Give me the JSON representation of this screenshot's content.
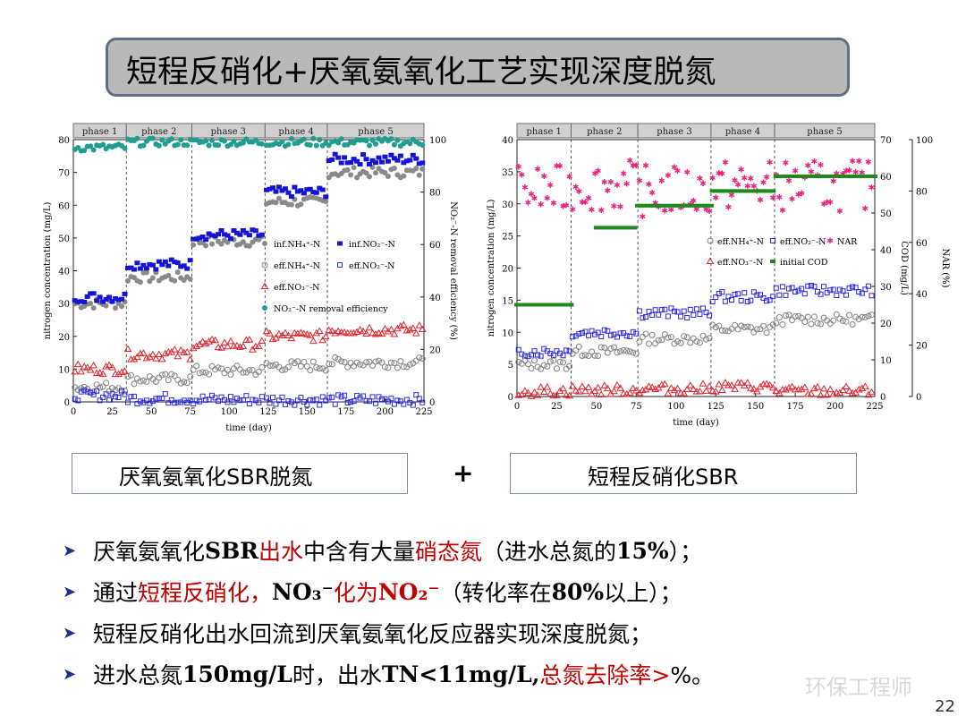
{
  "slide": {
    "title": "短程反硝化+厌氧氨氧化工艺实现深度脱氮",
    "page_number": "22",
    "watermark": "环保工程师",
    "plus": "+",
    "left_label": "厌氧氨氧化SBR脱氮",
    "right_label": "短程反硝化SBR"
  },
  "bullets": [
    {
      "parts": [
        {
          "t": "厌氧氨氧化",
          "c": ""
        },
        {
          "t": "SBR",
          "c": "bold"
        },
        {
          "t": "出水",
          "c": "red"
        },
        {
          "t": "中含有大量",
          "c": ""
        },
        {
          "t": "硝态氮",
          "c": "red"
        },
        {
          "t": "（进水总氮的",
          "c": ""
        },
        {
          "t": "15%",
          "c": "bold"
        },
        {
          "t": "）；",
          "c": ""
        }
      ]
    },
    {
      "parts": [
        {
          "t": "通过",
          "c": ""
        },
        {
          "t": "短程反硝化，",
          "c": "red"
        },
        {
          "t": "   NO₃⁻ ",
          "c": "bold"
        },
        {
          "t": "化为",
          "c": "red"
        },
        {
          "t": "NO₂⁻",
          "c": "bold red"
        },
        {
          "t": "（转化率在",
          "c": ""
        },
        {
          "t": "80%",
          "c": "bold"
        },
        {
          "t": "以上）；",
          "c": ""
        }
      ]
    },
    {
      "parts": [
        {
          "t": "短程反硝化出水回流到厌氧氨氧化反应器实现深度脱氮；",
          "c": ""
        }
      ]
    },
    {
      "parts": [
        {
          "t": "进水总氮",
          "c": ""
        },
        {
          "t": "150mg/L",
          "c": "bold"
        },
        {
          "t": "时，出水",
          "c": ""
        },
        {
          "t": "TN<11mg/L,",
          "c": "bold"
        },
        {
          "t": " ",
          "c": ""
        },
        {
          "t": "总氮去除率>",
          "c": "red"
        },
        {
          "t": "%。",
          "c": ""
        }
      ]
    }
  ],
  "chart_data": [
    {
      "type": "scatter",
      "xlabel": "time (day)",
      "ylabel": "nitrogen concentration (mg/L)",
      "y2label": "NO₂⁻-N removal efficiency (%)",
      "xlim": [
        0,
        225
      ],
      "ylim": [
        0,
        80
      ],
      "y2lim": [
        0,
        100
      ],
      "xticks": [
        0,
        25,
        50,
        75,
        100,
        125,
        150,
        175,
        200,
        225
      ],
      "yticks": [
        0,
        10,
        20,
        30,
        40,
        50,
        60,
        70,
        80
      ],
      "y2ticks": [
        0,
        20,
        40,
        60,
        80,
        100
      ],
      "phases": [
        {
          "label": "phase 1",
          "start": 0,
          "end": 34
        },
        {
          "label": "phase 2",
          "start": 34,
          "end": 76
        },
        {
          "label": "phase 3",
          "start": 76,
          "end": 123
        },
        {
          "label": "phase 4",
          "start": 123,
          "end": 163
        },
        {
          "label": "phase 5",
          "start": 163,
          "end": 225
        }
      ],
      "legend": {
        "position": "center-right",
        "entries": [
          "inf.NH₄⁺-N",
          "inf.NO₂⁻-N",
          "eff.NH₄⁺-N",
          "eff.NO₂⁻-N",
          "eff.NO₃⁻-N",
          "NO₂⁻-N removal efficiency"
        ]
      },
      "series": [
        {
          "name": "inf.NH₄⁺-N",
          "marker": "filled-circle",
          "color": "#8a8a8a",
          "axis": "left",
          "segments": [
            [
              0,
              34,
              30
            ],
            [
              34,
              76,
              38
            ],
            [
              76,
              123,
              49
            ],
            [
              123,
              163,
              61
            ],
            [
              163,
              225,
              70
            ]
          ]
        },
        {
          "name": "inf.NO₂⁻-N",
          "marker": "filled-square",
          "color": "#1414d8",
          "axis": "left",
          "segments": [
            [
              0,
              34,
              32
            ],
            [
              34,
              76,
              42
            ],
            [
              76,
              123,
              51
            ],
            [
              123,
              163,
              64
            ],
            [
              163,
              225,
              74
            ]
          ]
        },
        {
          "name": "eff.NH₄⁺-N",
          "marker": "open-circle",
          "color": "#808080",
          "axis": "left",
          "segments": [
            [
              0,
              34,
              4.5
            ],
            [
              34,
              76,
              7
            ],
            [
              76,
              123,
              9.5
            ],
            [
              123,
              163,
              11
            ],
            [
              163,
              225,
              12
            ]
          ]
        },
        {
          "name": "eff.NO₂⁻-N",
          "marker": "open-square",
          "color": "#2a2ae0",
          "axis": "left",
          "segments": [
            [
              0,
              34,
              2
            ],
            [
              34,
              76,
              1
            ],
            [
              76,
              123,
              0.7
            ],
            [
              123,
              163,
              0.6
            ],
            [
              163,
              225,
              0.6
            ]
          ]
        },
        {
          "name": "eff.NO₃⁻-N",
          "marker": "open-triangle",
          "color": "#e0232c",
          "axis": "left",
          "segments": [
            [
              0,
              34,
              10
            ],
            [
              34,
              76,
              14.5
            ],
            [
              76,
              123,
              17.5
            ],
            [
              123,
              163,
              20
            ],
            [
              163,
              225,
              22
            ]
          ]
        },
        {
          "name": "NO₂⁻-N removal efficiency",
          "marker": "filled-circle",
          "color": "#1e9e8c",
          "axis": "right",
          "segments": [
            [
              0,
              34,
              97
            ],
            [
              34,
              76,
              99
            ],
            [
              76,
              123,
              99
            ],
            [
              123,
              163,
              99
            ],
            [
              163,
              225,
              99
            ]
          ]
        }
      ]
    },
    {
      "type": "scatter",
      "xlabel": "time (day)",
      "ylabel": "nitrogen concentration (mg/L)",
      "y2label": "COD (mg/L)",
      "y3label": "NAR (%)",
      "xlim": [
        0,
        225
      ],
      "ylim": [
        0,
        40
      ],
      "y2lim": [
        0,
        70
      ],
      "y3lim": [
        0,
        100
      ],
      "xticks": [
        0,
        25,
        50,
        75,
        100,
        125,
        150,
        175,
        200,
        225
      ],
      "yticks": [
        0,
        5,
        10,
        15,
        20,
        25,
        30,
        35,
        40
      ],
      "y2ticks": [
        0,
        10,
        20,
        30,
        40,
        50,
        60,
        70
      ],
      "y3ticks": [
        0,
        20,
        40,
        60,
        80,
        100
      ],
      "phases": [
        {
          "label": "phase 1",
          "start": 0,
          "end": 34
        },
        {
          "label": "phase 2",
          "start": 34,
          "end": 76
        },
        {
          "label": "phase 3",
          "start": 76,
          "end": 122
        },
        {
          "label": "phase 4",
          "start": 122,
          "end": 162
        },
        {
          "label": "phase 5",
          "start": 162,
          "end": 225
        }
      ],
      "legend": {
        "position": "center-right",
        "entries": [
          "eff.NH₄⁺-N",
          "eff.NO₂⁻-N",
          "NAR",
          "eff.NO₃⁻-N",
          "initial COD"
        ]
      },
      "series": [
        {
          "name": "eff.NH₄⁺-N",
          "marker": "open-circle",
          "color": "#808080",
          "axis": "left",
          "segments": [
            [
              0,
              34,
              5
            ],
            [
              34,
              76,
              7
            ],
            [
              76,
              122,
              9
            ],
            [
              122,
              162,
              10.5
            ],
            [
              162,
              225,
              12
            ]
          ]
        },
        {
          "name": "eff.NO₂⁻-N",
          "marker": "open-square",
          "color": "#2a2ae0",
          "axis": "left",
          "segments": [
            [
              0,
              34,
              7
            ],
            [
              34,
              76,
              10
            ],
            [
              76,
              122,
              13
            ],
            [
              122,
              162,
              15.5
            ],
            [
              162,
              225,
              16.5
            ]
          ]
        },
        {
          "name": "NAR",
          "marker": "star",
          "color": "#e8237e",
          "axis": "y3",
          "segments": [
            [
              0,
              34,
              80
            ],
            [
              34,
              76,
              82
            ],
            [
              76,
              122,
              80
            ],
            [
              122,
              162,
              82
            ],
            [
              162,
              225,
              82
            ]
          ]
        },
        {
          "name": "eff.NO₃⁻-N",
          "marker": "open-triangle",
          "color": "#e0232c",
          "axis": "left",
          "segments": [
            [
              0,
              34,
              0.8
            ],
            [
              34,
              76,
              1
            ],
            [
              76,
              122,
              1.2
            ],
            [
              122,
              162,
              1.5
            ],
            [
              162,
              225,
              0.8
            ]
          ]
        },
        {
          "name": "initial COD",
          "marker": "filled-dot",
          "color": "#1e8a1e",
          "axis": "right",
          "points": [
            [
              0,
              25
            ],
            [
              34,
              25
            ],
            [
              37,
              27
            ],
            [
              40,
              32
            ],
            [
              44,
              37
            ],
            [
              47,
              41
            ],
            [
              50,
              46
            ],
            [
              75,
              46
            ],
            [
              76,
              52
            ],
            [
              122,
              52
            ],
            [
              123,
              56
            ],
            [
              162,
              56
            ],
            [
              163,
              60
            ],
            [
              225,
              60
            ]
          ]
        }
      ]
    }
  ]
}
